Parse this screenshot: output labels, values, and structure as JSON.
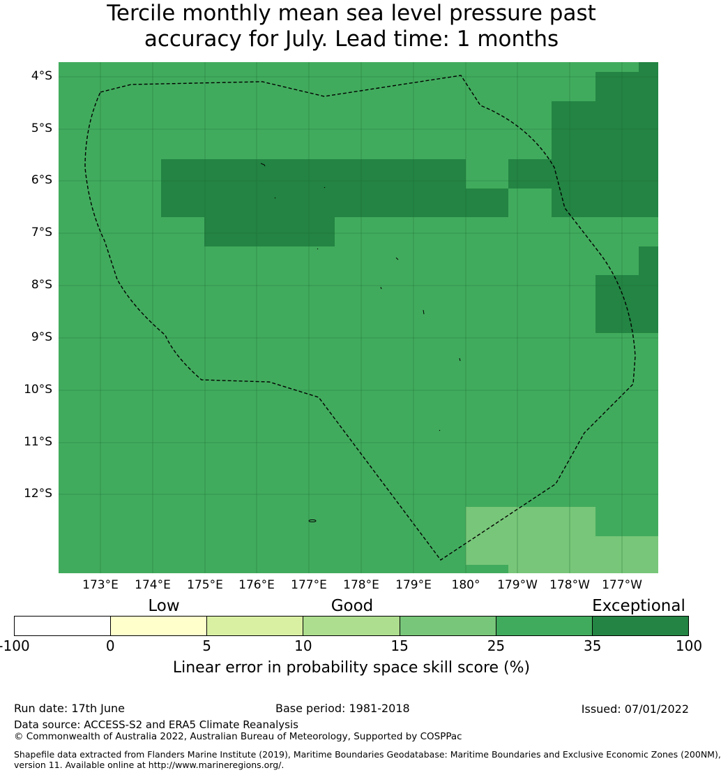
{
  "title_line1": "Tercile monthly mean sea level pressure past",
  "title_line2": "accuracy for July. Lead time: 1 months",
  "lat_labels": [
    "4°S",
    "5°S",
    "6°S",
    "7°S",
    "8°S",
    "9°S",
    "10°S",
    "11°S",
    "12°S"
  ],
  "lon_labels": [
    "173°E",
    "174°E",
    "175°E",
    "176°E",
    "177°E",
    "178°E",
    "179°E",
    "180°",
    "179°W",
    "178°W",
    "177°W"
  ],
  "colorbar": {
    "categories": [
      "Low",
      "Good",
      "Exceptional"
    ],
    "ticks": [
      "-100",
      "0",
      "5",
      "10",
      "15",
      "25",
      "35",
      "100"
    ],
    "colors": [
      "#ffffff",
      "#ffffcc",
      "#d9f0a3",
      "#addd8e",
      "#78c679",
      "#41ab5d",
      "#238443"
    ],
    "label": "Linear error in probability space skill score (%)"
  },
  "map_colors": {
    "base": "#41ab5d",
    "exceptional": "#238443",
    "good": "#78c679"
  },
  "footer": {
    "run_date": "Run date: 17th June",
    "base_period": "Base period: 1981-2018",
    "issued": "Issued: 07/01/2022",
    "data_source": "Data source: ACCESS-S2 and ERA5 Climate Reanalysis",
    "copyright": "© Commonwealth of Australia 2022, Australian Bureau of Meteorology, Supported by COSPPac",
    "shapefile_line1": "Shapefile data extracted from Flanders Marine Institute (2019), Maritime Boundaries Geodatabase: Maritime Boundaries and Exclusive Economic Zones (200NM),",
    "shapefile_line2": "version 11. Available online at http://www.marineregions.org/."
  }
}
